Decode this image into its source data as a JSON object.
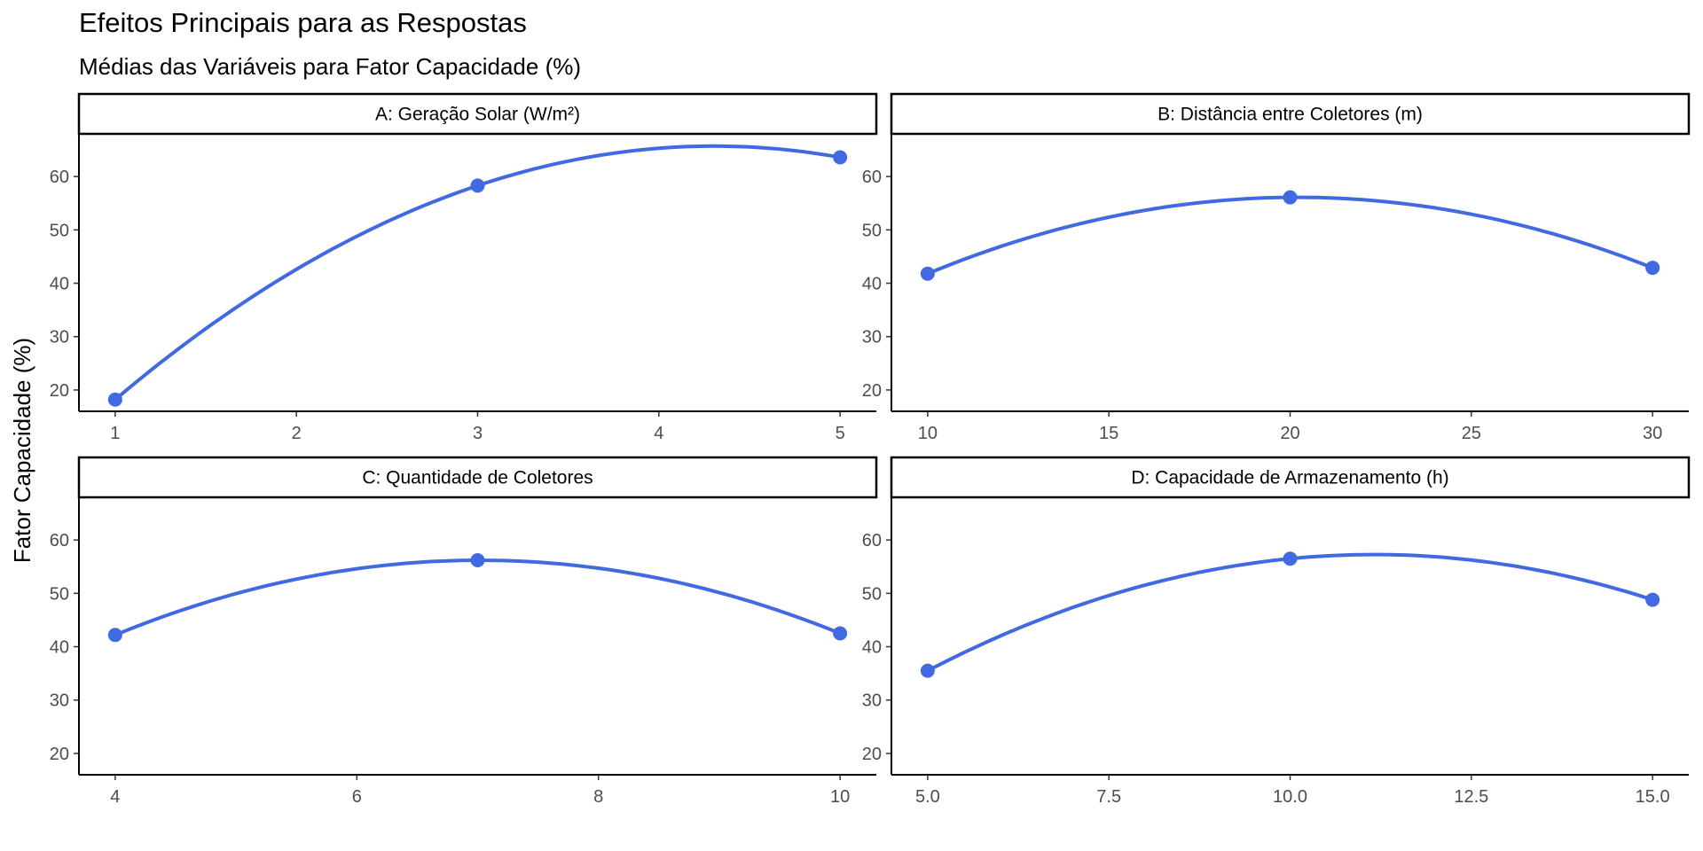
{
  "title": "Efeitos Principais para as Respostas",
  "subtitle": "Médias das Variáveis para Fator Capacidade (%)",
  "ylabel": "Fator Capacidade (%)",
  "colors": {
    "series": "#4169E1",
    "axis": "#000000",
    "tick_text": "#4d4d4d"
  },
  "chart_data": [
    {
      "type": "line",
      "title": "A: Geração Solar (W/m²)",
      "x": [
        1,
        3,
        5
      ],
      "y": [
        18.2,
        58.3,
        63.6
      ],
      "xlim": [
        0.8,
        5.2
      ],
      "xticks": [
        1,
        2,
        3,
        4,
        5
      ],
      "xtick_labels": [
        "1",
        "2",
        "3",
        "4",
        "5"
      ],
      "ylim": [
        16,
        68
      ],
      "yticks": [
        20,
        30,
        40,
        50,
        60
      ],
      "ytick_labels": [
        "20",
        "30",
        "40",
        "50",
        "60"
      ],
      "smooth": "quadratic",
      "grid": false
    },
    {
      "type": "line",
      "title": "B: Distância entre Coletores (m)",
      "x": [
        10,
        20,
        30
      ],
      "y": [
        41.8,
        56.1,
        42.9
      ],
      "xlim": [
        9,
        31
      ],
      "xticks": [
        10,
        15,
        20,
        25,
        30
      ],
      "xtick_labels": [
        "10",
        "15",
        "20",
        "25",
        "30"
      ],
      "ylim": [
        16,
        68
      ],
      "yticks": [
        20,
        30,
        40,
        50,
        60
      ],
      "ytick_labels": [
        "20",
        "30",
        "40",
        "50",
        "60"
      ],
      "smooth": "quadratic",
      "grid": false
    },
    {
      "type": "line",
      "title": "C: Quantidade de Coletores",
      "x": [
        4,
        7,
        10
      ],
      "y": [
        42.2,
        56.2,
        42.5
      ],
      "xlim": [
        3.7,
        10.3
      ],
      "xticks": [
        4,
        6,
        8,
        10
      ],
      "xtick_labels": [
        "4",
        "6",
        "8",
        "10"
      ],
      "ylim": [
        16,
        68
      ],
      "yticks": [
        20,
        30,
        40,
        50,
        60
      ],
      "ytick_labels": [
        "20",
        "30",
        "40",
        "50",
        "60"
      ],
      "smooth": "quadratic",
      "grid": false
    },
    {
      "type": "line",
      "title": "D: Capacidade de Armazenamento (h)",
      "x": [
        5,
        10,
        15
      ],
      "y": [
        35.5,
        56.5,
        48.8
      ],
      "xlim": [
        4.5,
        15.5
      ],
      "xticks": [
        5,
        7.5,
        10,
        12.5,
        15
      ],
      "xtick_labels": [
        "5.0",
        "7.5",
        "10.0",
        "12.5",
        "15.0"
      ],
      "ylim": [
        16,
        68
      ],
      "yticks": [
        20,
        30,
        40,
        50,
        60
      ],
      "ytick_labels": [
        "20",
        "30",
        "40",
        "50",
        "60"
      ],
      "smooth": "quadratic",
      "grid": false
    }
  ]
}
